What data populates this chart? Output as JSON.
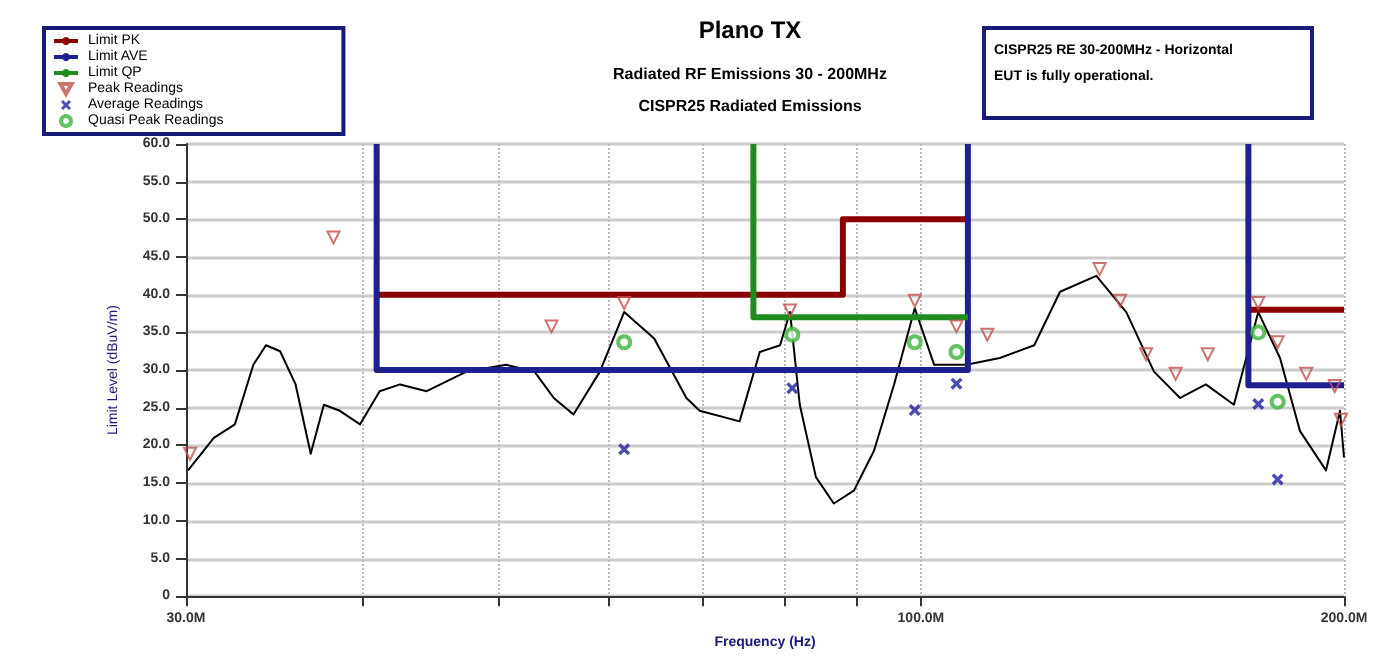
{
  "chart_data": {
    "type": "line",
    "title": "Plano TX",
    "subtitle": "Radiated RF Emissions 30 - 200MHz\nCISPR25 Radiated Emissions",
    "xlabel": "Frequency (Hz)",
    "ylabel": "Limit Level (dBuV/m)",
    "annotations": [
      "CISPR25 RE 30-200MHz - Horizontal\nEUT is fully operational."
    ],
    "log": "x",
    "grid": true,
    "legend": "top left",
    "xlim": [
      30,
      200
    ],
    "ylim": [
      0,
      60
    ],
    "xticks": [
      {
        "value": 30,
        "label": "30.0M"
      },
      {
        "value": 40,
        "label": null
      },
      {
        "value": 50,
        "label": null
      },
      {
        "value": 60,
        "label": null
      },
      {
        "value": 70,
        "label": null
      },
      {
        "value": 80,
        "label": null
      },
      {
        "value": 90,
        "label": null
      },
      {
        "value": 100,
        "label": "100.0M"
      },
      {
        "value": 200,
        "label": "200.0M"
      }
    ],
    "yticks": [
      {
        "value": 0,
        "label": "0"
      },
      {
        "value": 5,
        "label": "5.0"
      },
      {
        "value": 10,
        "label": "10.0"
      },
      {
        "value": 15,
        "label": "15.0"
      },
      {
        "value": 20,
        "label": "20.0"
      },
      {
        "value": 25,
        "label": "25.0"
      },
      {
        "value": 30,
        "label": "30.0"
      },
      {
        "value": 35,
        "label": "35.0"
      },
      {
        "value": 40,
        "label": "40.0"
      },
      {
        "value": 45,
        "label": "45.0"
      },
      {
        "value": 50,
        "label": "50.0"
      },
      {
        "value": 55,
        "label": "55.0"
      },
      {
        "value": 60,
        "label": "60.0"
      }
    ],
    "series": [
      {
        "color": "#000000",
        "marker": "none",
        "x": [
          30.1,
          31.4,
          32.5,
          33.5,
          34.2,
          35.0,
          35.9,
          36.8,
          37.6,
          38.6,
          39.9,
          41.2,
          42.6,
          44.5,
          47.5,
          50.7,
          53.1,
          54.8,
          56.6,
          59.1,
          61.5,
          64.6,
          68.1,
          69.6,
          74.3,
          76.8,
          79.4,
          80.7,
          82.0,
          84.2,
          86.7,
          89.6,
          92.6,
          95.7,
          99,
          102.2,
          107.7,
          113.8,
          120.4,
          125.6,
          133.3,
          140.0,
          146.5,
          152.9,
          159.5,
          167.0,
          173.8,
          180.1,
          186.1,
          194.2,
          198.7,
          200
        ],
        "values": [
          16.7,
          21,
          22.8,
          30.7,
          33.3,
          32.5,
          28.1,
          18.9,
          25.4,
          24.6,
          22.8,
          27.2,
          28.1,
          27.2,
          29.8,
          30.7,
          29.8,
          26.3,
          24.1,
          29.8,
          37.7,
          34.2,
          26.3,
          24.6,
          23.2,
          32.4,
          33.3,
          37.7,
          25.4,
          15.8,
          12.3,
          14.0,
          19.3,
          28.1,
          38.2,
          30.7,
          30.7,
          31.6,
          33.3,
          40.4,
          42.5,
          37.7,
          29.8,
          26.3,
          28.1,
          25.4,
          37.7,
          31.6,
          21.9,
          16.7,
          24.6,
          18.4
        ]
      },
      {
        "name": "Limit PK",
        "color": "#8b0000",
        "marker": "none",
        "x": [
          41,
          88,
          88,
          108,
          140,
          171,
          200
        ],
        "values": [
          40,
          40,
          50,
          50,
          null,
          38,
          38
        ]
      },
      {
        "name": "Limit AVE",
        "color": "#1f1f8f",
        "marker": "none",
        "x": [
          41,
          41,
          108,
          108,
          140,
          171,
          171,
          200
        ],
        "values": [
          60,
          30,
          30,
          60,
          null,
          60,
          28,
          28
        ]
      },
      {
        "name": "Limit QP",
        "color": "#1e8c1e",
        "marker": "none",
        "x": [
          76,
          76,
          108
        ],
        "values": [
          60,
          37,
          37
        ]
      },
      {
        "type": "scatter",
        "name": "Peak Readings",
        "color": "#c0504d",
        "marker": "triangle",
        "x": [
          30.2,
          38.2,
          54.6,
          61.5,
          80.7,
          99,
          106,
          111.5,
          134,
          138.6,
          144.6,
          151.8,
          160,
          173.8,
          179.4,
          188,
          197,
          199
        ],
        "values": [
          18.9,
          47.6,
          35.8,
          38.9,
          37.9,
          39.2,
          35.8,
          34.7,
          43.4,
          39.2,
          32.1,
          29.5,
          32.1,
          38.9,
          33.7,
          29.5,
          27.9,
          23.4
        ]
      },
      {
        "type": "scatter",
        "name": "Average Readings",
        "color": "#1f1f9c",
        "marker": "cross",
        "x": [
          61.5,
          81,
          99,
          106,
          173.8,
          179.4
        ],
        "values": [
          19.5,
          27.6,
          24.7,
          28.2,
          25.5,
          15.5
        ]
      },
      {
        "type": "scatter",
        "name": "Quasi Peak Readings",
        "color": "#3cb43c",
        "marker": "circle",
        "x": [
          61.5,
          81,
          99,
          106,
          173.8,
          179.4
        ],
        "values": [
          33.7,
          34.7,
          33.7,
          32.4,
          35,
          25.8
        ]
      }
    ]
  }
}
